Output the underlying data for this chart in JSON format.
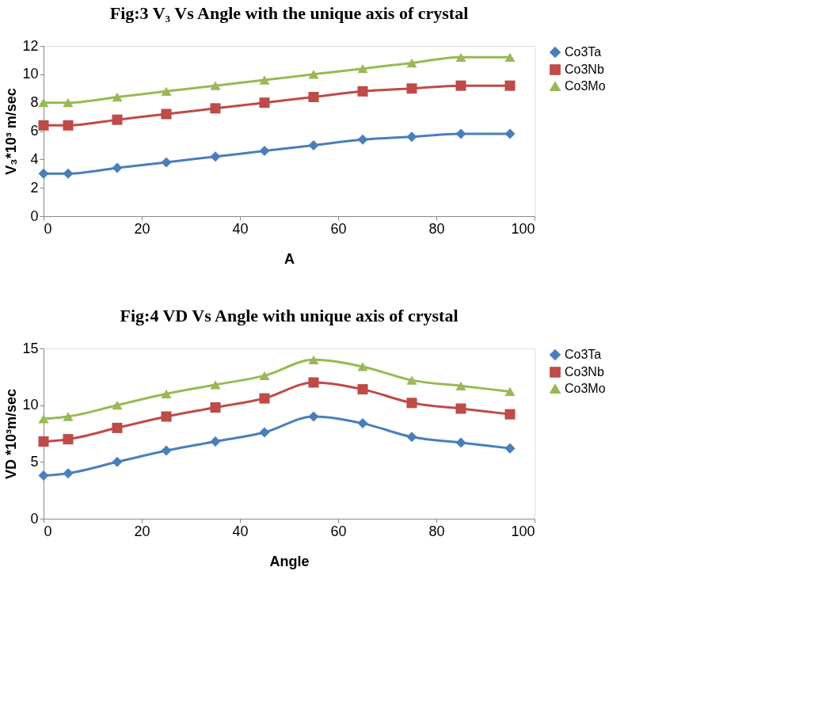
{
  "chart_data": [
    {
      "type": "line",
      "title": "Fig:3  V₃ Vs Angle with the unique axis of crystal",
      "xlabel": "A",
      "ylabel": "V₃*10³ m/sec",
      "x": [
        0,
        5,
        15,
        25,
        35,
        45,
        55,
        65,
        75,
        85,
        95
      ],
      "xlim": [
        0,
        100
      ],
      "xticks": [
        0,
        20,
        40,
        60,
        80,
        100
      ],
      "ylim": [
        0,
        12
      ],
      "yticks": [
        0,
        2,
        4,
        6,
        8,
        10,
        12
      ],
      "grid": false,
      "legend": "right",
      "line_style": "solid",
      "series": [
        {
          "name": "Co3Ta",
          "color": "#4a7ebb",
          "marker": "diamond",
          "values": [
            3.0,
            3.0,
            3.4,
            3.8,
            4.2,
            4.6,
            5.0,
            5.4,
            5.6,
            5.8,
            5.8
          ]
        },
        {
          "name": "Co3Nb",
          "color": "#be4b48",
          "marker": "square",
          "values": [
            6.4,
            6.4,
            6.8,
            7.2,
            7.6,
            8.0,
            8.4,
            8.8,
            9.0,
            9.2,
            9.2
          ]
        },
        {
          "name": "Co3Mo",
          "color": "#98b954",
          "marker": "triangle",
          "values": [
            8.0,
            8.0,
            8.4,
            8.8,
            9.2,
            9.6,
            10.0,
            10.4,
            10.8,
            11.2,
            11.2
          ]
        }
      ]
    },
    {
      "type": "line",
      "title": "Fig:4   VD  Vs Angle with unique axis of crystal",
      "xlabel": "Angle",
      "ylabel": "VD *10³m/sec",
      "x": [
        0,
        5,
        15,
        25,
        35,
        45,
        55,
        65,
        75,
        85,
        95
      ],
      "xlim": [
        0,
        100
      ],
      "xticks": [
        0,
        20,
        40,
        60,
        80,
        100
      ],
      "ylim": [
        0,
        15
      ],
      "yticks": [
        0,
        5,
        10,
        15
      ],
      "grid": false,
      "legend": "right",
      "line_style": "solid",
      "series": [
        {
          "name": "Co3Ta",
          "color": "#4a7ebb",
          "marker": "diamond",
          "values": [
            3.8,
            4.0,
            5.0,
            6.0,
            6.8,
            7.6,
            9.0,
            8.4,
            7.2,
            6.7,
            6.2
          ]
        },
        {
          "name": "Co3Nb",
          "color": "#be4b48",
          "marker": "square",
          "values": [
            6.8,
            7.0,
            8.0,
            9.0,
            9.8,
            10.6,
            12.0,
            11.4,
            10.2,
            9.7,
            9.2
          ]
        },
        {
          "name": "Co3Mo",
          "color": "#98b954",
          "marker": "triangle",
          "values": [
            8.8,
            9.0,
            10.0,
            11.0,
            11.8,
            12.6,
            14.0,
            13.4,
            12.2,
            11.7,
            11.2
          ]
        }
      ]
    }
  ]
}
